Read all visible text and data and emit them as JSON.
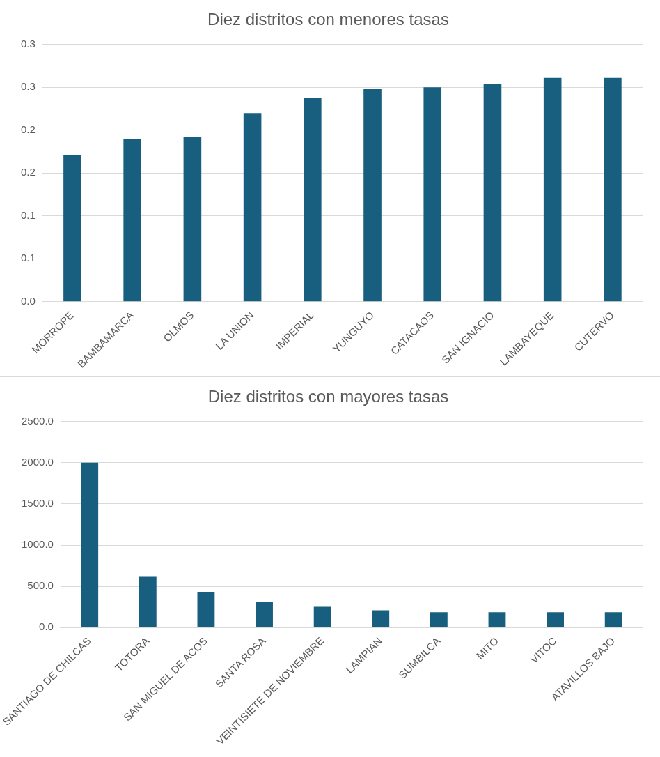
{
  "chart_data": [
    {
      "type": "bar",
      "title": "Diez distritos con menores tasas",
      "categories": [
        "MORROPE",
        "BAMBAMARCA",
        "OLMOS",
        "LA UNION",
        "IMPERIAL",
        "YUNGUYO",
        "CATACAOS",
        "SAN IGNACIO",
        "LAMBAYEQUE",
        "CUTERVO"
      ],
      "values": [
        0.171,
        0.19,
        0.192,
        0.22,
        0.238,
        0.248,
        0.25,
        0.254,
        0.261,
        0.261
      ],
      "color": "#175e7f",
      "ylim": [
        0,
        0.3
      ],
      "yticks": [
        {
          "value": 0,
          "label": "0.0"
        },
        {
          "value": 0.05,
          "label": "0.1"
        },
        {
          "value": 0.1,
          "label": "0.1"
        },
        {
          "value": 0.15,
          "label": "0.2"
        },
        {
          "value": 0.2,
          "label": "0.2"
        },
        {
          "value": 0.25,
          "label": "0.3"
        },
        {
          "value": 0.3,
          "label": "0.3"
        }
      ],
      "grid": "y"
    },
    {
      "type": "bar",
      "title": "Diez distritos con mayores tasas",
      "categories": [
        "SANTIAGO DE CHILCAS",
        "TOTORA",
        "SAN MIGUEL DE ACOS",
        "SANTA ROSA",
        "VEINTISIETE DE NOVIEMBRE",
        "LAMPIAN",
        "SUMBILCA",
        "MITO",
        "VITOC",
        "ATAVILLOS BAJO"
      ],
      "values": [
        2000,
        614,
        427,
        307,
        252,
        208,
        186,
        186,
        186,
        186
      ],
      "color": "#175e7f",
      "ylim": [
        0,
        2500
      ],
      "yticks": [
        {
          "value": 0,
          "label": "0.0"
        },
        {
          "value": 500,
          "label": "500.0"
        },
        {
          "value": 1000,
          "label": "1000.0"
        },
        {
          "value": 1500,
          "label": "1500.0"
        },
        {
          "value": 2000,
          "label": "2000.0"
        },
        {
          "value": 2500,
          "label": "2500.0"
        }
      ],
      "grid": "y"
    }
  ]
}
